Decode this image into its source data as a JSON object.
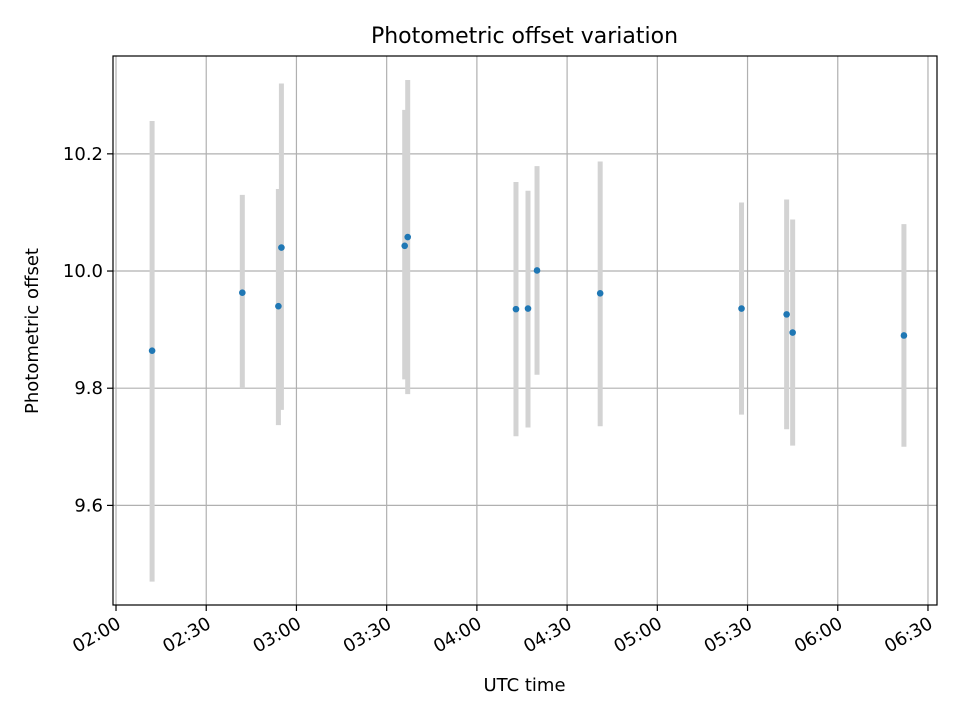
{
  "chart_data": {
    "type": "scatter",
    "title": "Photometric offset variation",
    "xlabel": "UTC time",
    "ylabel": "Photometric offset",
    "x_ticks": [
      "02:00",
      "02:30",
      "03:00",
      "03:30",
      "04:00",
      "04:30",
      "05:00",
      "05:30",
      "06:00",
      "06:30"
    ],
    "x_tick_minutes": [
      0,
      30,
      60,
      90,
      120,
      150,
      180,
      210,
      240,
      270
    ],
    "y_ticks": [
      "9.6",
      "9.8",
      "10.0",
      "10.2"
    ],
    "y_tick_values": [
      9.6,
      9.8,
      10.0,
      10.2
    ],
    "xlim": [
      "01:59",
      "06:33"
    ],
    "ylim": [
      9.43,
      10.367
    ],
    "grid": true,
    "point_color": "#1f77b4",
    "errorbar_color": "#d3d3d3",
    "series": [
      {
        "points": [
          {
            "x": "02:12",
            "y": 9.864,
            "ylow": 9.47,
            "yhigh": 10.256
          },
          {
            "x": "02:42",
            "y": 9.963,
            "ylow": 9.8,
            "yhigh": 10.13
          },
          {
            "x": "02:54",
            "y": 9.94,
            "ylow": 9.737,
            "yhigh": 10.14
          },
          {
            "x": "02:55",
            "y": 10.04,
            "ylow": 9.763,
            "yhigh": 10.32
          },
          {
            "x": "03:36",
            "y": 10.043,
            "ylow": 9.815,
            "yhigh": 10.275
          },
          {
            "x": "03:37",
            "y": 10.058,
            "ylow": 9.79,
            "yhigh": 10.326
          },
          {
            "x": "04:13",
            "y": 9.935,
            "ylow": 9.718,
            "yhigh": 10.152
          },
          {
            "x": "04:17",
            "y": 9.936,
            "ylow": 9.733,
            "yhigh": 10.137
          },
          {
            "x": "04:20",
            "y": 10.001,
            "ylow": 9.823,
            "yhigh": 10.179
          },
          {
            "x": "04:41",
            "y": 9.962,
            "ylow": 9.735,
            "yhigh": 10.187
          },
          {
            "x": "05:28",
            "y": 9.936,
            "ylow": 9.755,
            "yhigh": 10.117
          },
          {
            "x": "05:43",
            "y": 9.926,
            "ylow": 9.73,
            "yhigh": 10.122
          },
          {
            "x": "05:45",
            "y": 9.895,
            "ylow": 9.702,
            "yhigh": 10.088
          },
          {
            "x": "06:22",
            "y": 9.89,
            "ylow": 9.7,
            "yhigh": 10.08
          }
        ]
      }
    ]
  }
}
